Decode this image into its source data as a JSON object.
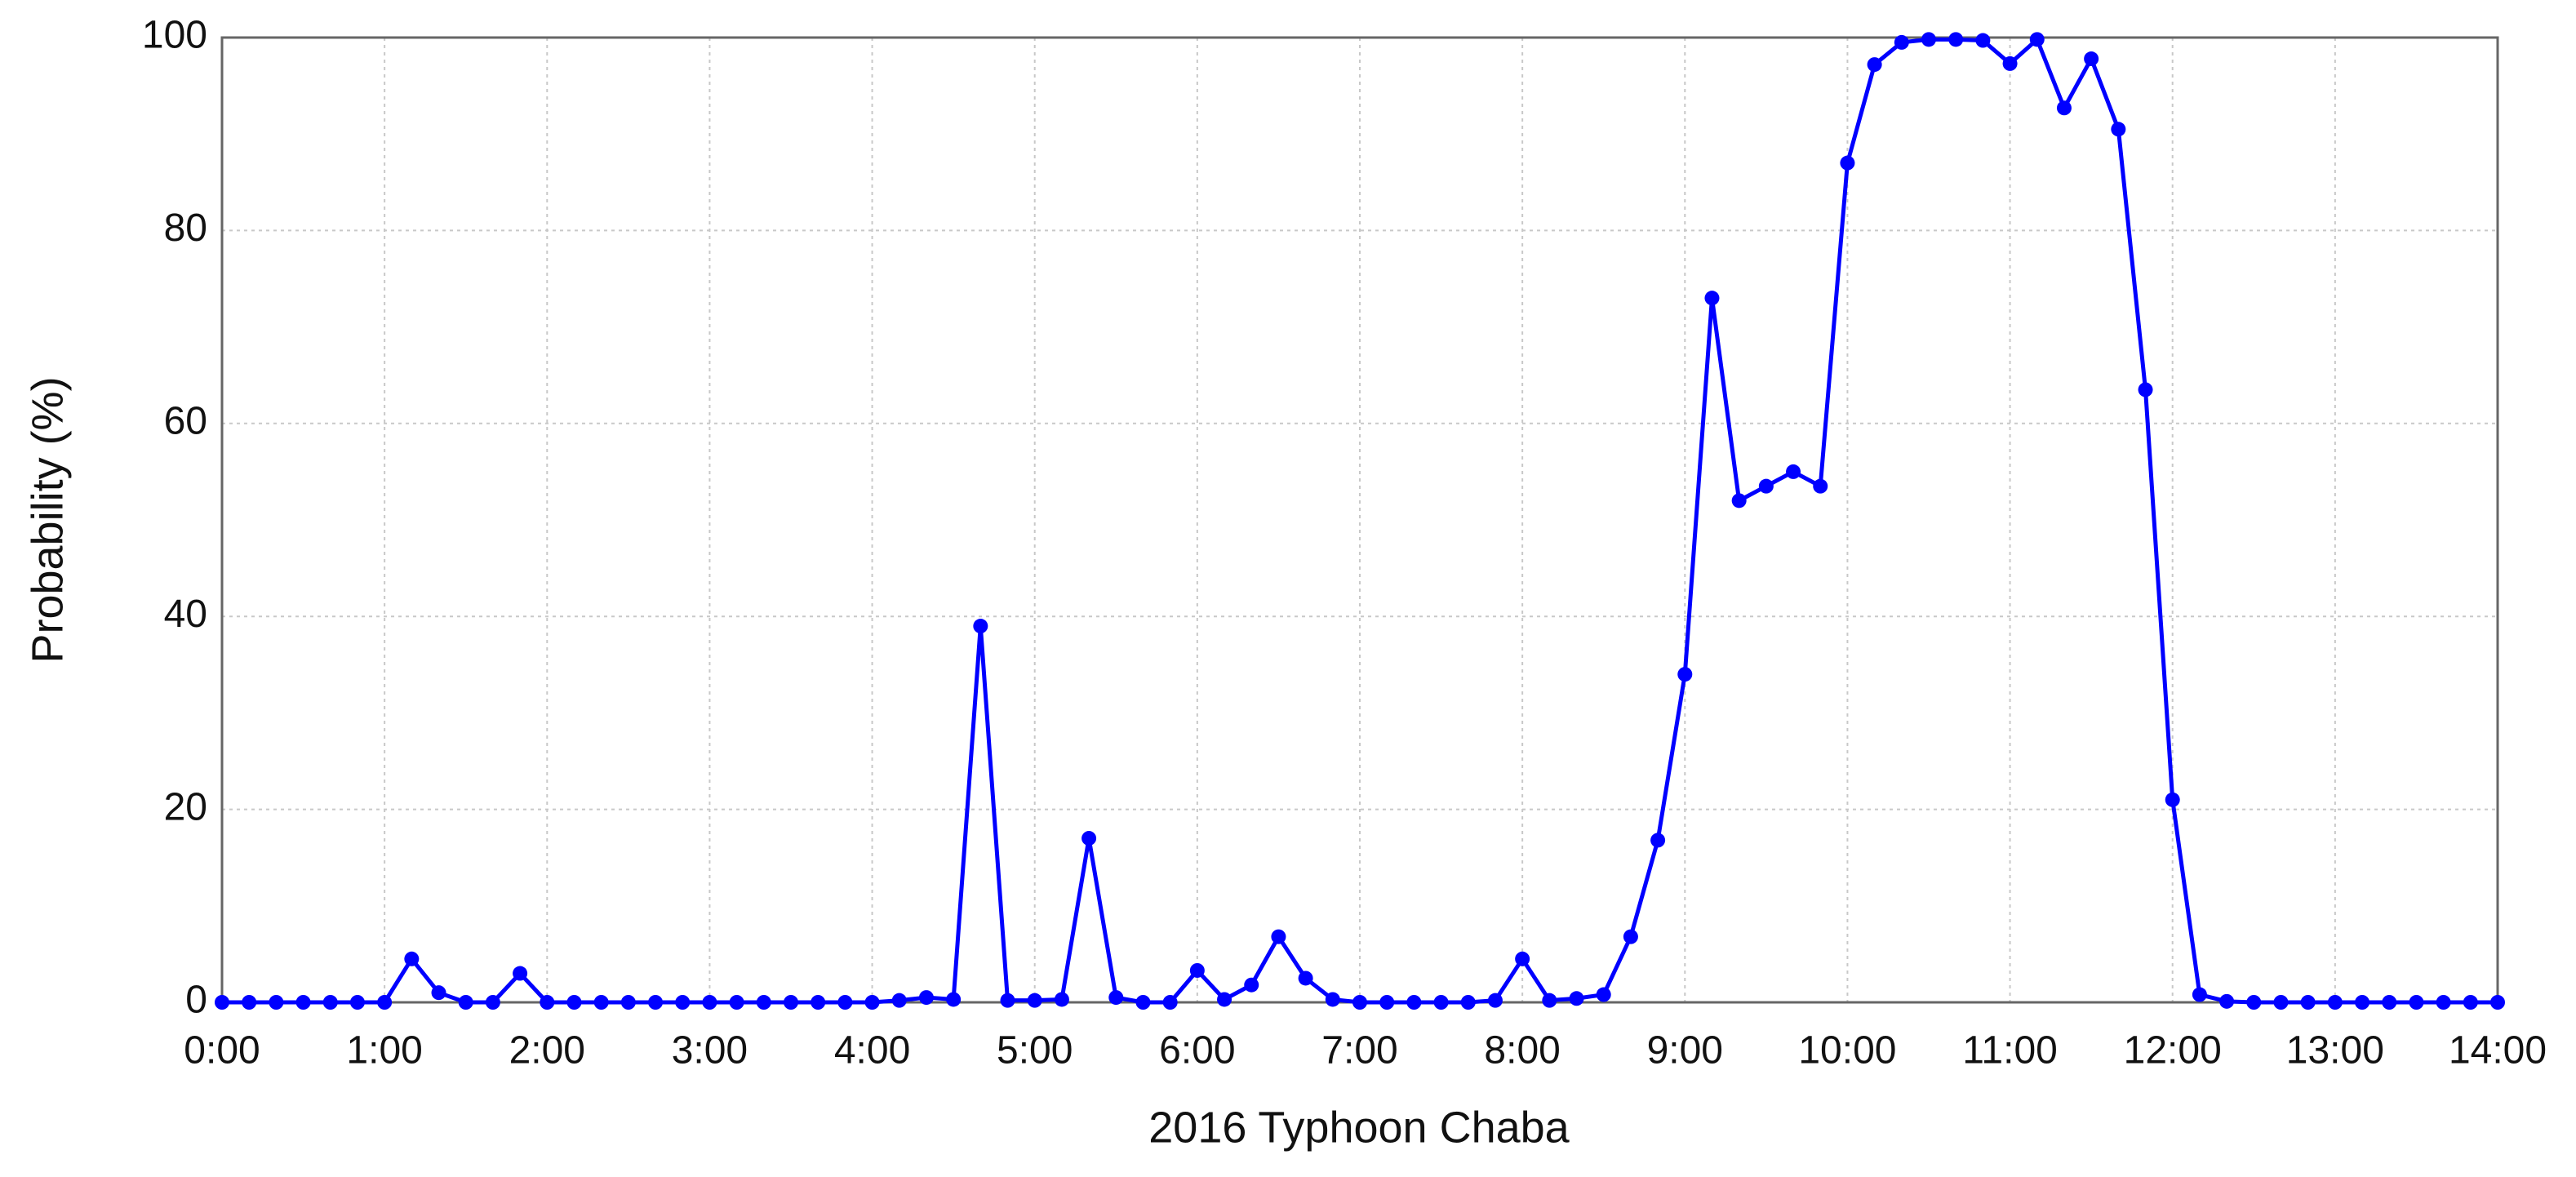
{
  "chart_data": {
    "type": "line",
    "xlabel": "2016 Typhoon Chaba",
    "ylabel": "Probability (%)",
    "x": [
      0,
      10,
      20,
      30,
      40,
      50,
      60,
      70,
      80,
      90,
      100,
      110,
      120,
      130,
      140,
      150,
      160,
      170,
      180,
      190,
      200,
      210,
      220,
      230,
      240,
      250,
      260,
      270,
      280,
      290,
      300,
      310,
      320,
      330,
      340,
      350,
      360,
      370,
      380,
      390,
      400,
      410,
      420,
      430,
      440,
      450,
      460,
      470,
      480,
      490,
      500,
      510,
      520,
      530,
      540,
      550,
      560,
      570,
      580,
      590,
      600,
      610,
      620,
      630,
      640,
      650,
      660,
      670,
      680,
      690,
      700,
      710,
      720,
      730,
      740,
      750,
      760,
      770,
      780,
      790,
      800,
      810,
      820,
      830,
      840
    ],
    "series": [
      {
        "color": "#0000ff",
        "values": [
          0,
          0,
          0,
          0,
          0,
          0,
          0,
          4.5,
          1,
          0,
          0,
          3,
          0,
          0,
          0,
          0,
          0,
          0,
          0,
          0,
          0,
          0,
          0,
          0,
          0,
          0.2,
          0.5,
          0.3,
          39,
          0.2,
          0.2,
          0.3,
          17,
          0.5,
          0,
          0,
          3.3,
          0.3,
          1.8,
          6.8,
          2.5,
          0.3,
          0,
          0,
          0,
          0,
          0,
          0.2,
          4.5,
          0.2,
          0.4,
          0.8,
          6.8,
          16.8,
          34,
          73,
          52,
          53.5,
          55,
          53.5,
          87,
          97.2,
          99.5,
          99.8,
          99.8,
          99.7,
          97.3,
          99.8,
          92.7,
          97.8,
          90.5,
          63.5,
          21,
          0.8,
          0.1,
          0,
          0,
          0,
          0,
          0,
          0,
          0,
          0,
          0,
          0
        ]
      }
    ],
    "xlim": [
      0,
      840
    ],
    "xticks": [
      {
        "value": 0,
        "label": "0:00"
      },
      {
        "value": 60,
        "label": "1:00"
      },
      {
        "value": 120,
        "label": "2:00"
      },
      {
        "value": 180,
        "label": "3:00"
      },
      {
        "value": 240,
        "label": "4:00"
      },
      {
        "value": 300,
        "label": "5:00"
      },
      {
        "value": 360,
        "label": "6:00"
      },
      {
        "value": 420,
        "label": "7:00"
      },
      {
        "value": 480,
        "label": "8:00"
      },
      {
        "value": 540,
        "label": "9:00"
      },
      {
        "value": 600,
        "label": "10:00"
      },
      {
        "value": 660,
        "label": "11:00"
      },
      {
        "value": 720,
        "label": "12:00"
      },
      {
        "value": 780,
        "label": "13:00"
      },
      {
        "value": 840,
        "label": "14:00"
      }
    ],
    "ylim": [
      0,
      100
    ],
    "yticks": [
      0,
      20,
      40,
      60,
      80,
      100
    ],
    "grid": true
  }
}
